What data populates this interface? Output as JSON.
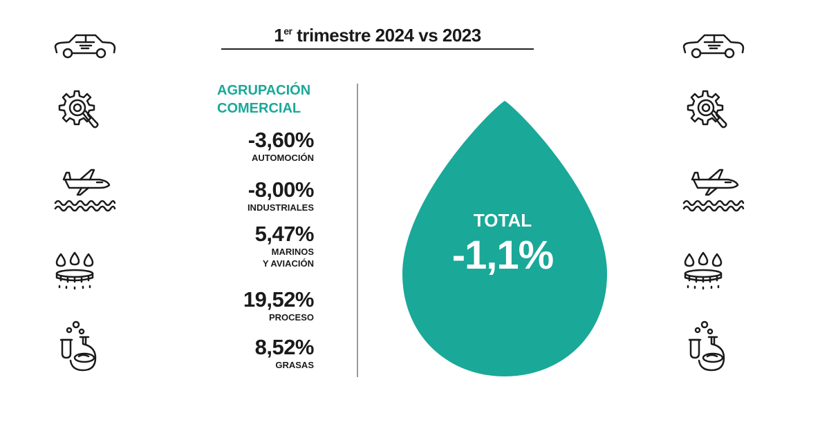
{
  "title": {
    "prefix": "1",
    "superscript": "er",
    "main": " trimestre 2024 vs 2023"
  },
  "heading_lines": [
    "AGRUPACIÓN",
    "COMERCIAL"
  ],
  "colors": {
    "accent": "#1aa898",
    "text": "#1a1a1a",
    "divider": "#9a9a9a"
  },
  "icons": [
    "car-icon",
    "gear-search-icon",
    "plane-waves-icon",
    "drops-burner-icon",
    "lab-flask-icon"
  ],
  "chart_data": {
    "type": "table",
    "title": "1er trimestre 2024 vs 2023",
    "rows": [
      {
        "value": "-3,60%",
        "label_lines": [
          "AUTOMOCIÓN"
        ]
      },
      {
        "value": "-8,00%",
        "label_lines": [
          "INDUSTRIALES"
        ]
      },
      {
        "value": "5,47%",
        "label_lines": [
          "MARINOS",
          "Y AVIACIÓN"
        ]
      },
      {
        "value": "19,52%",
        "label_lines": [
          "PROCESO"
        ]
      },
      {
        "value": "8,52%",
        "label_lines": [
          "GRASAS"
        ]
      }
    ],
    "total": {
      "label": "TOTAL",
      "value": "-1,1%"
    }
  }
}
